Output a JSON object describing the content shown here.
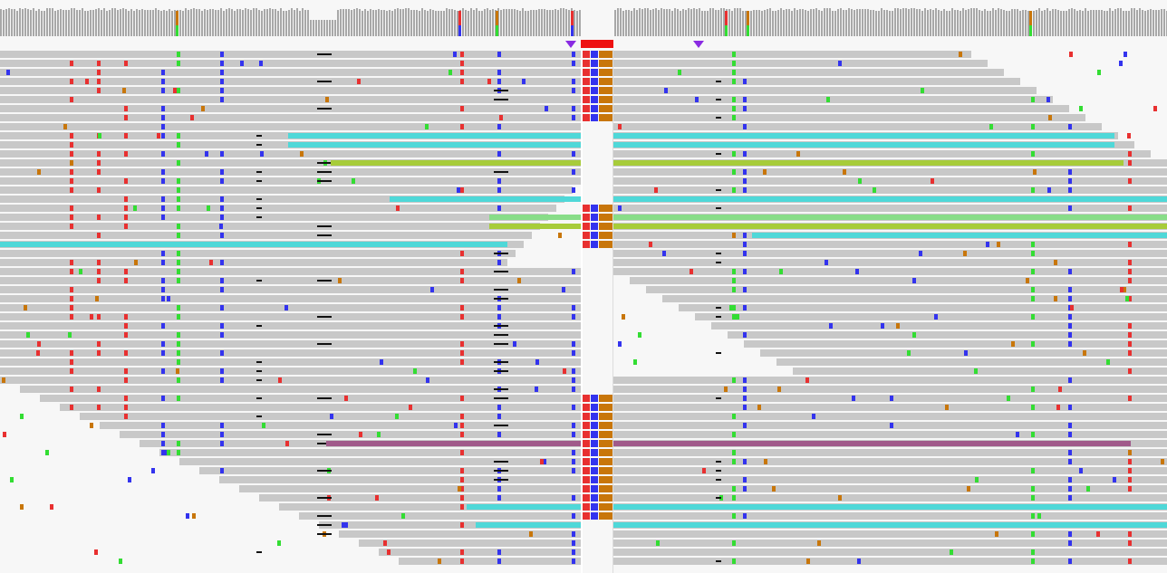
{
  "app": {
    "tracks": [
      "coverage-track",
      "alignment-track"
    ],
    "insertion_markers": 2,
    "center_indicator": "red"
  },
  "colors": {
    "background": "#f7f7f7",
    "read": "#c8c8c8",
    "coverage_bar": "#a8a8a8",
    "base_A": "#33dd33",
    "base_C": "#3333ee",
    "base_G": "#c8760a",
    "base_T": "#e83030",
    "insertion_marker": "#8a2be2",
    "center_marker": "#ee1111",
    "pair_cyan": "#4fd8d8",
    "pair_olive": "#a7cc3a",
    "pair_mauve": "#a05a8a",
    "pair_green": "#88dd88",
    "low_quality": "#d9d9d9"
  }
}
